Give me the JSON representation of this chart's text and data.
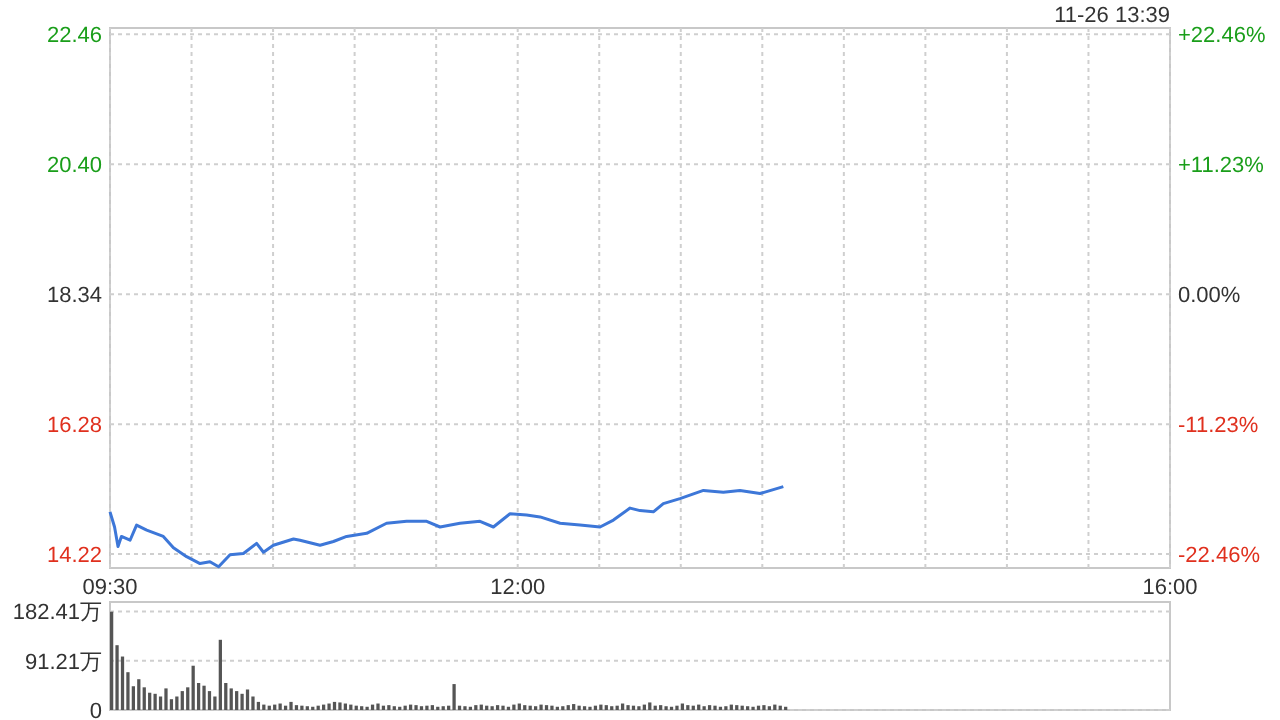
{
  "chart_data": [
    {
      "type": "line",
      "annotations": [
        "11-26 13:39"
      ],
      "grid": true,
      "xlim": [
        9.5,
        16
      ],
      "xticks": [
        {
          "value": 9.5,
          "label": "09:30"
        },
        {
          "value": 10,
          "label": null
        },
        {
          "value": 10.5,
          "label": null
        },
        {
          "value": 11,
          "label": null
        },
        {
          "value": 11.5,
          "label": null
        },
        {
          "value": 12,
          "label": "12:00"
        },
        {
          "value": 12.5,
          "label": null
        },
        {
          "value": 13,
          "label": null
        },
        {
          "value": 13.5,
          "label": null
        },
        {
          "value": 14,
          "label": null
        },
        {
          "value": 14.5,
          "label": null
        },
        {
          "value": 15,
          "label": null
        },
        {
          "value": 15.5,
          "label": null
        },
        {
          "value": 16,
          "label": "16:00"
        }
      ],
      "ylim": [
        14.0,
        22.56
      ],
      "yticks": [
        22.46,
        {
          "value": 20.4,
          "label": "20.40"
        },
        18.34,
        16.28,
        14.22
      ],
      "y2lim": [
        -23.66,
        23.01
      ],
      "y2ticks": [
        {
          "value": 22.46,
          "label": "+22.46%"
        },
        {
          "value": 11.23,
          "label": "+11.23%"
        },
        {
          "value": 0,
          "label": "0.00%"
        },
        {
          "value": -11.23,
          "label": "-11.23%"
        },
        {
          "value": -22.46,
          "label": "-22.46%"
        }
      ],
      "series": [
        {
          "color": "#3d77d8",
          "x": [
            9.5,
            9.528,
            9.549,
            9.57,
            9.623,
            9.663,
            9.725,
            9.827,
            9.889,
            9.97,
            10.052,
            10.113,
            10.166,
            10.236,
            10.318,
            10.399,
            10.441,
            10.502,
            10.625,
            10.665,
            10.788,
            10.87,
            10.951,
            11.074,
            11.196,
            11.319,
            11.442,
            11.524,
            11.646,
            11.769,
            11.851,
            11.953,
            12.055,
            12.137,
            12.26,
            12.382,
            12.505,
            12.587,
            12.689,
            12.75,
            12.832,
            12.893,
            12.995,
            13.139,
            13.261,
            13.363,
            13.486,
            13.629
          ],
          "values": [
            14.89,
            14.65,
            14.34,
            14.5,
            14.44,
            14.68,
            14.6,
            14.5,
            14.32,
            14.18,
            14.07,
            14.1,
            14.02,
            14.21,
            14.23,
            14.39,
            14.25,
            14.36,
            14.46,
            14.44,
            14.36,
            14.42,
            14.5,
            14.55,
            14.71,
            14.74,
            14.74,
            14.65,
            14.71,
            14.74,
            14.65,
            14.86,
            14.84,
            14.81,
            14.71,
            14.68,
            14.65,
            14.76,
            14.95,
            14.91,
            14.89,
            15.02,
            15.1,
            15.23,
            15.2,
            15.23,
            15.18,
            15.29
          ]
        }
      ]
    },
    {
      "type": "bar",
      "tick_labels": "y",
      "grid": "y",
      "xlim": [
        9.5,
        16
      ],
      "ylim": [
        0,
        200
      ],
      "yticks": [
        0,
        {
          "value": 91.21,
          "label": "91.21万"
        },
        {
          "value": 182.41,
          "label": "182.41万"
        }
      ],
      "series": [
        {
          "color": "#555555",
          "x": [
            9.5,
            9.5333,
            9.5667,
            9.6,
            9.6333,
            9.6667,
            9.7,
            9.7333,
            9.7667,
            9.8,
            9.8333,
            9.8667,
            9.9,
            9.9333,
            9.9667,
            10.0,
            10.0333,
            10.0667,
            10.1,
            10.1333,
            10.1667,
            10.2,
            10.2333,
            10.2667,
            10.3,
            10.3333,
            10.3667,
            10.4,
            10.4333,
            10.4667,
            10.5,
            10.5333,
            10.5667,
            10.6,
            10.6333,
            10.6667,
            10.7,
            10.7333,
            10.7667,
            10.8,
            10.8333,
            10.8667,
            10.9,
            10.9333,
            10.9667,
            11.0,
            11.0333,
            11.0667,
            11.1,
            11.1333,
            11.1667,
            11.2,
            11.2333,
            11.2667,
            11.3,
            11.3333,
            11.3667,
            11.4,
            11.4333,
            11.4667,
            11.5,
            11.5333,
            11.5667,
            11.6,
            11.6333,
            11.6667,
            11.7,
            11.7333,
            11.7667,
            11.8,
            11.8333,
            11.8667,
            11.9,
            11.9333,
            11.9667,
            12.0,
            12.0333,
            12.0667,
            12.1,
            12.1333,
            12.1667,
            12.2,
            12.2333,
            12.2667,
            12.3,
            12.3333,
            12.3667,
            12.4,
            12.4333,
            12.4667,
            12.5,
            12.5333,
            12.5667,
            12.6,
            12.6333,
            12.6667,
            12.7,
            12.7333,
            12.7667,
            12.8,
            12.8333,
            12.8667,
            12.9,
            12.9333,
            12.9667,
            13.0,
            13.0333,
            13.0667,
            13.1,
            13.1333,
            13.1667,
            13.2,
            13.2333,
            13.2667,
            13.3,
            13.3333,
            13.3667,
            13.4,
            13.4333,
            13.4667,
            13.5,
            13.5333,
            13.5667,
            13.6,
            13.6333
          ],
          "values": [
            182,
            120,
            99,
            70,
            44,
            57,
            42,
            32,
            30,
            25,
            40,
            20,
            25,
            35,
            42,
            82,
            50,
            45,
            35,
            25,
            130,
            50,
            40,
            35,
            30,
            38,
            25,
            15,
            10,
            8,
            10,
            12,
            8,
            15,
            9,
            8,
            7,
            6,
            8,
            10,
            12,
            15,
            14,
            12,
            10,
            8,
            7,
            6,
            10,
            12,
            8,
            9,
            7,
            6,
            8,
            10,
            9,
            7,
            8,
            9,
            6,
            7,
            8,
            48,
            8,
            7,
            6,
            9,
            10,
            8,
            7,
            9,
            8,
            6,
            10,
            12,
            9,
            8,
            7,
            10,
            9,
            8,
            6,
            7,
            9,
            11,
            8,
            7,
            6,
            8,
            10,
            9,
            7,
            8,
            12,
            9,
            8,
            7,
            10,
            14,
            8,
            9,
            7,
            6,
            8,
            12,
            9,
            8,
            10,
            7,
            9,
            8,
            6,
            7,
            10,
            9,
            8,
            7,
            6,
            8,
            9,
            7,
            10,
            8,
            6
          ]
        }
      ]
    }
  ]
}
